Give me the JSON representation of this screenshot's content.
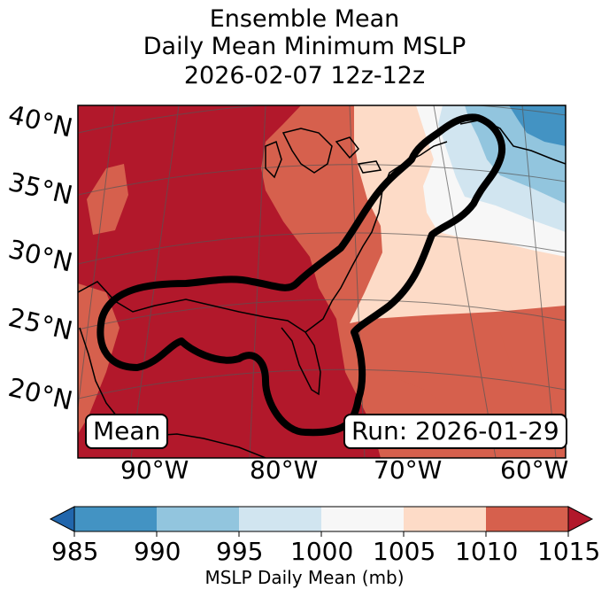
{
  "title": {
    "line1": "Ensemble Mean",
    "line2": "Daily Mean Minimum MSLP",
    "line3": "2026-02-07 12z-12z"
  },
  "map": {
    "lat_labels": [
      "40°N",
      "35°N",
      "30°N",
      "25°N",
      "20°N"
    ],
    "lon_labels": [
      "90°W",
      "80°W",
      "70°W",
      "60°W"
    ],
    "panel_label": "Mean",
    "run_label": "Run: 2026-01-29"
  },
  "colorbar": {
    "ticks": [
      "985",
      "990",
      "995",
      "1000",
      "1005",
      "1010",
      "1015"
    ],
    "label": "MSLP Daily Mean (mb)",
    "colors": [
      "#2166ac",
      "#4393c3",
      "#92c5de",
      "#d1e5f0",
      "#f7f7f7",
      "#fddbc7",
      "#d6604d",
      "#b2182b"
    ]
  }
}
